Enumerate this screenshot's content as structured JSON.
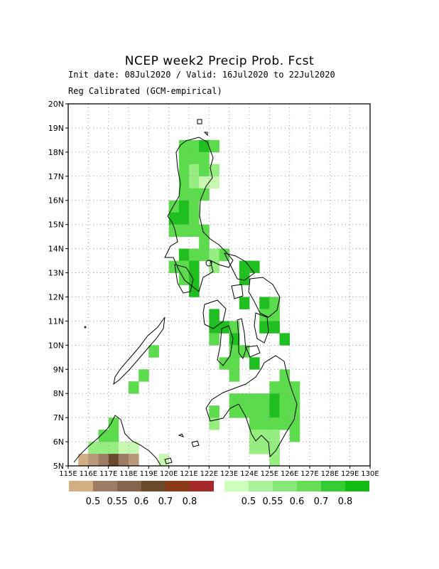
{
  "header": {
    "title": "NCEP week2 Precip Prob. Fcst",
    "init_line": "Init date: 08Jul2020 / Valid: 16Jul2020 to 22Jul2020",
    "method_line": "Reg Calibrated (GCM-empirical)"
  },
  "map": {
    "lat_range": [
      5,
      20
    ],
    "lon_range": [
      115,
      130
    ],
    "lat_labels": [
      "5N",
      "6N",
      "7N",
      "8N",
      "9N",
      "10N",
      "11N",
      "12N",
      "13N",
      "14N",
      "15N",
      "16N",
      "17N",
      "18N",
      "19N",
      "20N"
    ],
    "lon_labels": [
      "115E",
      "116E",
      "117E",
      "118E",
      "119E",
      "120E",
      "121E",
      "122E",
      "123E",
      "124E",
      "125E",
      "126E",
      "127E",
      "128E",
      "129E",
      "130E"
    ],
    "grid": "dotted",
    "cell_size_deg": 0.5,
    "cells": [
      {
        "lat": 18.25,
        "lon": 120.75,
        "c": 2
      },
      {
        "lat": 18.25,
        "lon": 121.25,
        "c": 2
      },
      {
        "lat": 18.25,
        "lon": 121.75,
        "c": 3
      },
      {
        "lat": 18.25,
        "lon": 122.25,
        "c": 2
      },
      {
        "lat": 17.75,
        "lon": 120.75,
        "c": 2
      },
      {
        "lat": 17.75,
        "lon": 121.25,
        "c": 2
      },
      {
        "lat": 17.75,
        "lon": 121.75,
        "c": 2
      },
      {
        "lat": 17.25,
        "lon": 120.75,
        "c": 2
      },
      {
        "lat": 17.25,
        "lon": 121.25,
        "c": 1
      },
      {
        "lat": 17.25,
        "lon": 121.75,
        "c": 2
      },
      {
        "lat": 17.25,
        "lon": 122.25,
        "c": 1
      },
      {
        "lat": 16.75,
        "lon": 120.75,
        "c": 2
      },
      {
        "lat": 16.75,
        "lon": 121.25,
        "c": 1
      },
      {
        "lat": 16.75,
        "lon": 121.75,
        "c": 0
      },
      {
        "lat": 16.75,
        "lon": 122.25,
        "c": 0
      },
      {
        "lat": 16.25,
        "lon": 120.75,
        "c": 2
      },
      {
        "lat": 16.25,
        "lon": 121.25,
        "c": 2
      },
      {
        "lat": 16.25,
        "lon": 121.75,
        "c": 2
      },
      {
        "lat": 15.75,
        "lon": 120.25,
        "c": 2
      },
      {
        "lat": 15.75,
        "lon": 120.75,
        "c": 3
      },
      {
        "lat": 15.75,
        "lon": 121.25,
        "c": 2
      },
      {
        "lat": 15.25,
        "lon": 120.25,
        "c": 3
      },
      {
        "lat": 15.25,
        "lon": 120.75,
        "c": 3
      },
      {
        "lat": 15.25,
        "lon": 121.25,
        "c": 2
      },
      {
        "lat": 14.75,
        "lon": 120.25,
        "c": 2
      },
      {
        "lat": 14.75,
        "lon": 120.75,
        "c": 2
      },
      {
        "lat": 14.75,
        "lon": 121.25,
        "c": 2
      },
      {
        "lat": 14.75,
        "lon": 121.75,
        "c": 2
      },
      {
        "lat": 14.25,
        "lon": 121.75,
        "c": 2
      },
      {
        "lat": 13.75,
        "lon": 120.75,
        "c": 3
      },
      {
        "lat": 13.75,
        "lon": 121.25,
        "c": 2
      },
      {
        "lat": 13.75,
        "lon": 121.75,
        "c": 2
      },
      {
        "lat": 13.75,
        "lon": 122.25,
        "c": 1
      },
      {
        "lat": 13.75,
        "lon": 122.75,
        "c": 2
      },
      {
        "lat": 13.25,
        "lon": 120.25,
        "c": 2
      },
      {
        "lat": 13.25,
        "lon": 120.75,
        "c": 2
      },
      {
        "lat": 13.25,
        "lon": 121.25,
        "c": 3
      },
      {
        "lat": 13.25,
        "lon": 122.25,
        "c": 1
      },
      {
        "lat": 13.25,
        "lon": 123.75,
        "c": 3
      },
      {
        "lat": 13.25,
        "lon": 124.25,
        "c": 3
      },
      {
        "lat": 12.75,
        "lon": 120.75,
        "c": 2
      },
      {
        "lat": 12.75,
        "lon": 121.25,
        "c": 3
      },
      {
        "lat": 12.75,
        "lon": 123.75,
        "c": 3
      },
      {
        "lat": 12.25,
        "lon": 121.25,
        "c": 3
      },
      {
        "lat": 11.75,
        "lon": 123.75,
        "c": 3
      },
      {
        "lat": 11.75,
        "lon": 124.75,
        "c": 3
      },
      {
        "lat": 11.75,
        "lon": 125.25,
        "c": 2
      },
      {
        "lat": 11.25,
        "lon": 122.25,
        "c": 3
      },
      {
        "lat": 11.25,
        "lon": 124.75,
        "c": 2
      },
      {
        "lat": 11.25,
        "lon": 125.25,
        "c": 2
      },
      {
        "lat": 10.75,
        "lon": 122.25,
        "c": 3
      },
      {
        "lat": 10.75,
        "lon": 122.75,
        "c": 3
      },
      {
        "lat": 10.75,
        "lon": 123.25,
        "c": 2
      },
      {
        "lat": 10.75,
        "lon": 124.75,
        "c": 3
      },
      {
        "lat": 10.75,
        "lon": 125.25,
        "c": 3
      },
      {
        "lat": 10.25,
        "lon": 122.25,
        "c": 2
      },
      {
        "lat": 10.25,
        "lon": 123.25,
        "c": 3
      },
      {
        "lat": 10.25,
        "lon": 125.75,
        "c": 3
      },
      {
        "lat": 9.75,
        "lon": 119.25,
        "c": 2
      },
      {
        "lat": 9.75,
        "lon": 123.25,
        "c": 2
      },
      {
        "lat": 9.75,
        "lon": 123.75,
        "c": 2
      },
      {
        "lat": 9.25,
        "lon": 122.75,
        "c": 2
      },
      {
        "lat": 9.25,
        "lon": 123.25,
        "c": 2
      },
      {
        "lat": 9.25,
        "lon": 124.25,
        "c": 3
      },
      {
        "lat": 8.75,
        "lon": 118.75,
        "c": 2
      },
      {
        "lat": 8.75,
        "lon": 123.25,
        "c": 2
      },
      {
        "lat": 8.75,
        "lon": 125.75,
        "c": 2
      },
      {
        "lat": 8.25,
        "lon": 118.25,
        "c": 2
      },
      {
        "lat": 8.25,
        "lon": 125.25,
        "c": 2
      },
      {
        "lat": 8.25,
        "lon": 125.75,
        "c": 2
      },
      {
        "lat": 8.25,
        "lon": 126.25,
        "c": 2
      },
      {
        "lat": 7.75,
        "lon": 123.25,
        "c": 2
      },
      {
        "lat": 7.75,
        "lon": 123.75,
        "c": 2
      },
      {
        "lat": 7.75,
        "lon": 124.25,
        "c": 2
      },
      {
        "lat": 7.75,
        "lon": 124.75,
        "c": 2
      },
      {
        "lat": 7.75,
        "lon": 125.25,
        "c": 3
      },
      {
        "lat": 7.75,
        "lon": 125.75,
        "c": 2
      },
      {
        "lat": 7.75,
        "lon": 126.25,
        "c": 2
      },
      {
        "lat": 7.25,
        "lon": 122.25,
        "c": 2
      },
      {
        "lat": 7.25,
        "lon": 123.25,
        "c": 2
      },
      {
        "lat": 7.25,
        "lon": 123.75,
        "c": 2
      },
      {
        "lat": 7.25,
        "lon": 124.25,
        "c": 2
      },
      {
        "lat": 7.25,
        "lon": 124.75,
        "c": 2
      },
      {
        "lat": 7.25,
        "lon": 125.25,
        "c": 3
      },
      {
        "lat": 7.25,
        "lon": 125.75,
        "c": 2
      },
      {
        "lat": 7.25,
        "lon": 126.25,
        "c": 2
      },
      {
        "lat": 6.75,
        "lon": 117.25,
        "c": 2
      },
      {
        "lat": 6.75,
        "lon": 122.25,
        "c": 1
      },
      {
        "lat": 6.75,
        "lon": 124.25,
        "c": 2
      },
      {
        "lat": 6.75,
        "lon": 124.75,
        "c": 2
      },
      {
        "lat": 6.75,
        "lon": 125.25,
        "c": 2
      },
      {
        "lat": 6.75,
        "lon": 125.75,
        "c": 2
      },
      {
        "lat": 6.75,
        "lon": 126.25,
        "c": 2
      },
      {
        "lat": 6.25,
        "lon": 116.75,
        "c": 2
      },
      {
        "lat": 6.25,
        "lon": 117.25,
        "c": 2
      },
      {
        "lat": 6.25,
        "lon": 124.25,
        "c": 1
      },
      {
        "lat": 6.25,
        "lon": 124.75,
        "c": 1
      },
      {
        "lat": 6.25,
        "lon": 125.25,
        "c": 1
      },
      {
        "lat": 6.25,
        "lon": 126.25,
        "c": 2
      },
      {
        "lat": 5.75,
        "lon": 116.25,
        "c": 1
      },
      {
        "lat": 5.75,
        "lon": 116.75,
        "c": 1
      },
      {
        "lat": 5.75,
        "lon": 117.25,
        "c": 1
      },
      {
        "lat": 5.75,
        "lon": 117.75,
        "c": 0
      },
      {
        "lat": 5.75,
        "lon": 118.25,
        "c": 0
      },
      {
        "lat": 5.75,
        "lon": 124.25,
        "c": 1
      },
      {
        "lat": 5.75,
        "lon": 124.75,
        "c": 1
      },
      {
        "lat": 5.75,
        "lon": 125.25,
        "c": 1
      },
      {
        "lat": 5.25,
        "lon": 116.25,
        "c": 0
      },
      {
        "lat": 5.25,
        "lon": 116.75,
        "c": 0
      },
      {
        "lat": 5.25,
        "lon": 117.25,
        "c": 0
      },
      {
        "lat": 5.25,
        "lon": 117.75,
        "c": 1
      },
      {
        "lat": 5.25,
        "lon": 118.25,
        "c": 0
      },
      {
        "lat": 5.25,
        "lon": 119.75,
        "c": 0
      },
      {
        "lat": 5.25,
        "lon": 125.25,
        "c": 1
      }
    ],
    "dry_cells": [
      {
        "lat": 5.25,
        "lon": 115.75,
        "c": 0
      },
      {
        "lat": 5.25,
        "lon": 116.25,
        "c": 1
      },
      {
        "lat": 5.25,
        "lon": 116.75,
        "c": 2
      },
      {
        "lat": 5.25,
        "lon": 117.25,
        "c": 3
      },
      {
        "lat": 5.25,
        "lon": 117.75,
        "c": 2
      },
      {
        "lat": 5.25,
        "lon": 118.25,
        "c": 1
      }
    ]
  },
  "legend": {
    "dry": {
      "colors": [
        "#d3ae81",
        "#9c7c64",
        "#84644c",
        "#6b4a2c",
        "#8b3a18",
        "#a52a2a"
      ],
      "labels": [
        "0.5",
        "0.55",
        "0.6",
        "0.7",
        "0.8"
      ]
    },
    "wet": {
      "colors": [
        "#ccffbb",
        "#aaf299",
        "#88e877",
        "#66dd55",
        "#33cc33",
        "#11bb11"
      ],
      "labels": [
        "0.5",
        "0.55",
        "0.6",
        "0.7",
        "0.8"
      ]
    }
  },
  "colors": {
    "wet_cells": [
      "#c8f7b0",
      "#96ee80",
      "#5cdc4c",
      "#1fbf1f"
    ],
    "dry_cells": [
      "#d3ae81",
      "#b8977a",
      "#9c7c64",
      "#6b4a2c"
    ]
  }
}
